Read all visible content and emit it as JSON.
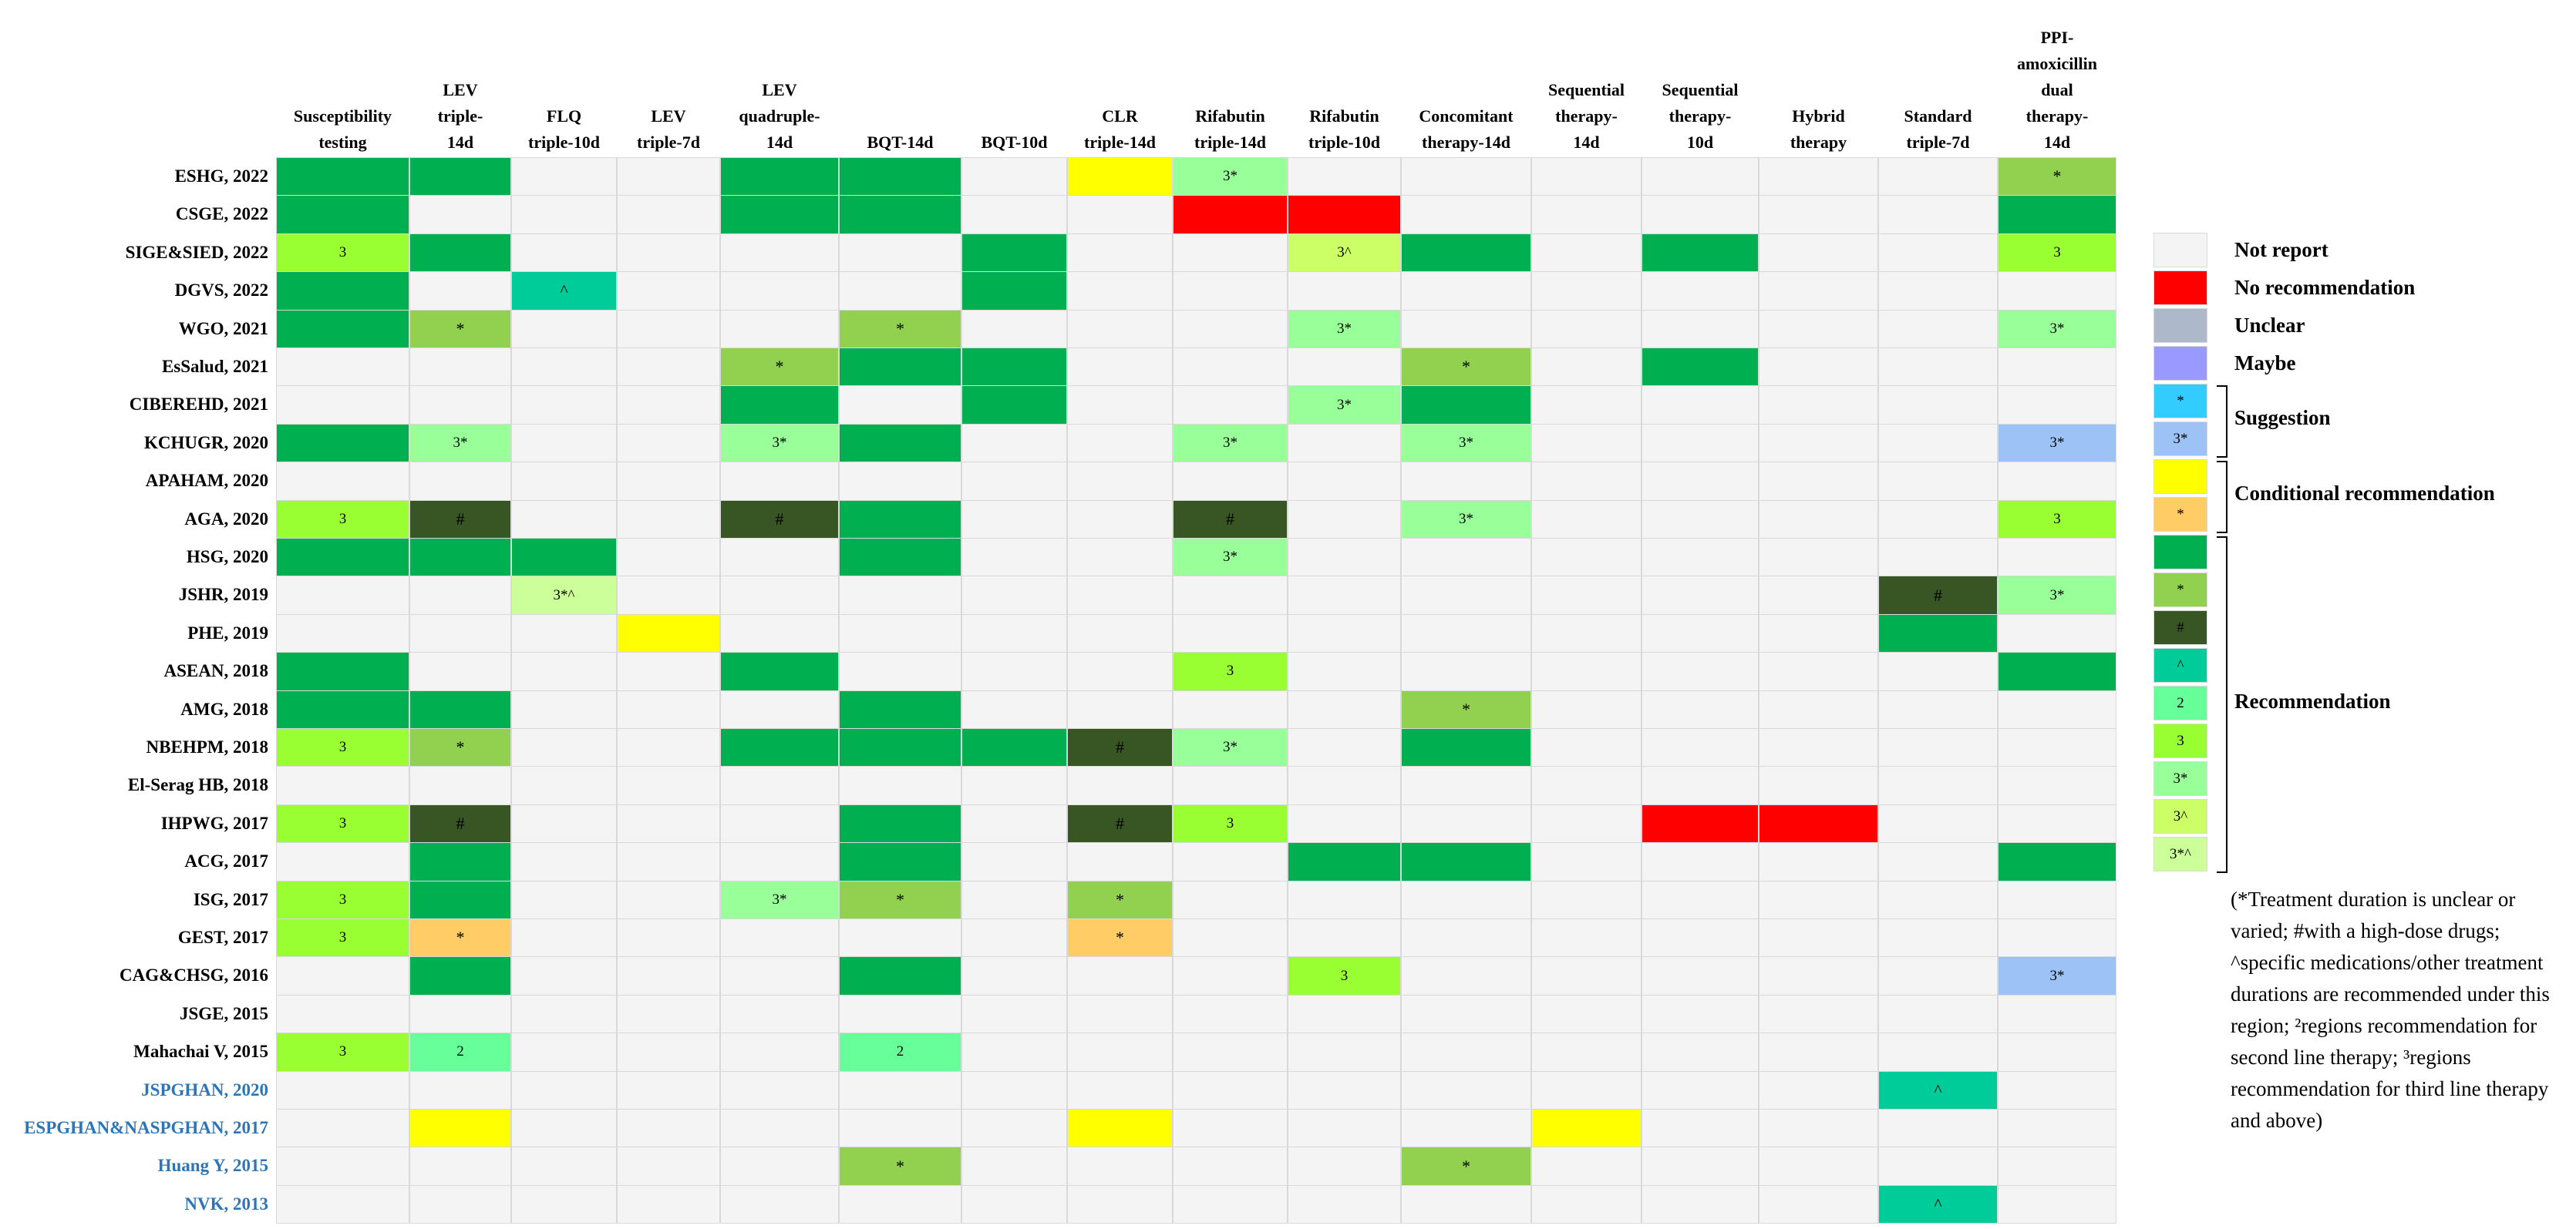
{
  "chart_data": {
    "type": "heatmap",
    "columns": [
      "Susceptibility\ntesting",
      "LEV\ntriple-\n14d",
      "FLQ\ntriple-10d",
      "LEV\ntriple-7d",
      "LEV\nquadruple-\n14d",
      "BQT-14d",
      "BQT-10d",
      "CLR\ntriple-14d",
      "Rifabutin\ntriple-14d",
      "Rifabutin\ntriple-10d",
      "Concomitant\ntherapy-14d",
      "Sequential\ntherapy-\n14d",
      "Sequential\ntherapy-\n10d",
      "Hybrid\ntherapy",
      "Standard\ntriple-7d",
      "PPI-\namoxicillin\ndual\ntherapy-\n14d"
    ],
    "rows": [
      {
        "label": "ESHG, 2022",
        "pediatric": false,
        "cells": [
          "G",
          "G",
          "",
          "",
          "G",
          "G",
          "",
          "Y",
          "3*",
          "",
          "",
          "",
          "",
          "",
          "",
          "*"
        ]
      },
      {
        "label": "CSGE, 2022",
        "pediatric": false,
        "cells": [
          "G",
          "",
          "",
          "",
          "G",
          "G",
          "",
          "",
          "N",
          "N",
          "",
          "",
          "",
          "",
          "",
          "G"
        ]
      },
      {
        "label": "SIGE&SIED, 2022",
        "pediatric": false,
        "cells": [
          "3",
          "G",
          "",
          "",
          "",
          "",
          "G",
          "",
          "",
          "3^",
          "G",
          "",
          "G",
          "",
          "",
          "3"
        ]
      },
      {
        "label": "DGVS, 2022",
        "pediatric": false,
        "cells": [
          "G",
          "",
          "^",
          "",
          "",
          "",
          "G",
          "",
          "",
          "",
          "",
          "",
          "",
          "",
          "",
          ""
        ]
      },
      {
        "label": "WGO, 2021",
        "pediatric": false,
        "cells": [
          "G",
          "*",
          "",
          "",
          "",
          "*",
          "",
          "",
          "",
          "3*",
          "",
          "",
          "",
          "",
          "",
          "3*"
        ]
      },
      {
        "label": "EsSalud, 2021",
        "pediatric": false,
        "cells": [
          "",
          "",
          "",
          "",
          "*",
          "G",
          "G",
          "",
          "",
          "",
          "*",
          "",
          "G",
          "",
          "",
          ""
        ]
      },
      {
        "label": "CIBEREHD, 2021",
        "pediatric": false,
        "cells": [
          "",
          "",
          "",
          "",
          "G",
          "",
          "G",
          "",
          "",
          "3*",
          "G",
          "",
          "",
          "",
          "",
          ""
        ]
      },
      {
        "label": "KCHUGR, 2020",
        "pediatric": false,
        "cells": [
          "G",
          "3*",
          "",
          "",
          "3*",
          "G",
          "",
          "",
          "3*",
          "",
          "3*",
          "",
          "",
          "",
          "",
          "3*b"
        ]
      },
      {
        "label": "APAHAM, 2020",
        "pediatric": false,
        "cells": [
          "",
          "",
          "",
          "",
          "",
          "",
          "",
          "",
          "",
          "",
          "",
          "",
          "",
          "",
          "",
          ""
        ]
      },
      {
        "label": "AGA, 2020",
        "pediatric": false,
        "cells": [
          "3",
          "#",
          "",
          "",
          "#",
          "G",
          "",
          "",
          "#",
          "",
          "3*",
          "",
          "",
          "",
          "",
          "3"
        ]
      },
      {
        "label": "HSG, 2020",
        "pediatric": false,
        "cells": [
          "G",
          "G",
          "G",
          "",
          "",
          "G",
          "",
          "",
          "3*",
          "",
          "",
          "",
          "",
          "",
          "",
          ""
        ]
      },
      {
        "label": "JSHR, 2019",
        "pediatric": false,
        "cells": [
          "",
          "",
          "3*^",
          "",
          "",
          "",
          "",
          "",
          "",
          "",
          "",
          "",
          "",
          "",
          "#",
          "3*"
        ]
      },
      {
        "label": "PHE, 2019",
        "pediatric": false,
        "cells": [
          "",
          "",
          "",
          "Y",
          "",
          "",
          "",
          "",
          "",
          "",
          "",
          "",
          "",
          "",
          "G",
          ""
        ]
      },
      {
        "label": "ASEAN, 2018",
        "pediatric": false,
        "cells": [
          "G",
          "",
          "",
          "",
          "G",
          "",
          "",
          "",
          "3",
          "",
          "",
          "",
          "",
          "",
          "",
          "G"
        ]
      },
      {
        "label": "AMG, 2018",
        "pediatric": false,
        "cells": [
          "G",
          "G",
          "",
          "",
          "",
          "G",
          "",
          "",
          "",
          "",
          "*",
          "",
          "",
          "",
          "",
          ""
        ]
      },
      {
        "label": "NBEHPM, 2018",
        "pediatric": false,
        "cells": [
          "3",
          "*",
          "",
          "",
          "G",
          "G",
          "G",
          "#",
          "3*",
          "",
          "G",
          "",
          "",
          "",
          "",
          ""
        ]
      },
      {
        "label": "El-Serag HB, 2018",
        "pediatric": false,
        "cells": [
          "",
          "",
          "",
          "",
          "",
          "",
          "",
          "",
          "",
          "",
          "",
          "",
          "",
          "",
          "",
          ""
        ]
      },
      {
        "label": "IHPWG, 2017",
        "pediatric": false,
        "cells": [
          "3",
          "#",
          "",
          "",
          "",
          "G",
          "",
          "#",
          "3",
          "",
          "",
          "",
          "N",
          "N",
          "",
          ""
        ]
      },
      {
        "label": "ACG, 2017",
        "pediatric": false,
        "cells": [
          "",
          "G",
          "",
          "",
          "",
          "G",
          "",
          "",
          "",
          "G",
          "G",
          "",
          "",
          "",
          "",
          "G"
        ]
      },
      {
        "label": "ISG, 2017",
        "pediatric": false,
        "cells": [
          "3",
          "G",
          "",
          "",
          "3*",
          "*",
          "",
          "*",
          "",
          "",
          "",
          "",
          "",
          "",
          "",
          ""
        ]
      },
      {
        "label": "GEST, 2017",
        "pediatric": false,
        "cells": [
          "3",
          "O*",
          "",
          "",
          "",
          "",
          "",
          "O*",
          "",
          "",
          "",
          "",
          "",
          "",
          "",
          ""
        ]
      },
      {
        "label": "CAG&CHSG, 2016",
        "pediatric": false,
        "cells": [
          "",
          "G",
          "",
          "",
          "",
          "G",
          "",
          "",
          "",
          "3",
          "",
          "",
          "",
          "",
          "",
          "3*b"
        ]
      },
      {
        "label": "JSGE, 2015",
        "pediatric": false,
        "cells": [
          "",
          "",
          "",
          "",
          "",
          "",
          "",
          "",
          "",
          "",
          "",
          "",
          "",
          "",
          "",
          ""
        ]
      },
      {
        "label": "Mahachai V, 2015",
        "pediatric": false,
        "cells": [
          "3",
          "2",
          "",
          "",
          "",
          "2",
          "",
          "",
          "",
          "",
          "",
          "",
          "",
          "",
          "",
          ""
        ]
      },
      {
        "label": "JSPGHAN, 2020",
        "pediatric": true,
        "cells": [
          "",
          "",
          "",
          "",
          "",
          "",
          "",
          "",
          "",
          "",
          "",
          "",
          "",
          "",
          "^",
          ""
        ]
      },
      {
        "label": "ESPGHAN&NASPGHAN, 2017",
        "pediatric": true,
        "cells": [
          "",
          "Y",
          "",
          "",
          "",
          "",
          "",
          "Y",
          "",
          "",
          "",
          "Y",
          "",
          "",
          "",
          ""
        ]
      },
      {
        "label": "Huang Y, 2015",
        "pediatric": true,
        "cells": [
          "",
          "",
          "",
          "",
          "",
          "*",
          "",
          "",
          "",
          "",
          "*",
          "",
          "",
          "",
          "",
          ""
        ]
      },
      {
        "label": "NVK, 2013",
        "pediatric": true,
        "cells": [
          "",
          "",
          "",
          "",
          "",
          "",
          "",
          "",
          "",
          "",
          "",
          "",
          "",
          "",
          "^",
          ""
        ]
      }
    ],
    "codes": {
      "": {
        "color": "#f4f4f4",
        "text": ""
      },
      "N": {
        "color": "#ff0000",
        "text": ""
      },
      "U": {
        "color": "#adb9ca",
        "text": ""
      },
      "M": {
        "color": "#9999ff",
        "text": ""
      },
      "S*": {
        "color": "#33ccff",
        "text": "*"
      },
      "*a": {
        "color": "#33ccff",
        "text": "*"
      },
      "3*b": {
        "color": "#9dc3f6",
        "text": "3*"
      },
      "Y": {
        "color": "#ffff00",
        "text": ""
      },
      "O*": {
        "color": "#ffcc66",
        "text": "*"
      },
      "G": {
        "color": "#00b050",
        "text": ""
      },
      "*": {
        "color": "#92d050",
        "text": "*"
      },
      "#": {
        "color": "#375623",
        "text": "#"
      },
      "^": {
        "color": "#00cc99",
        "text": "^"
      },
      "2": {
        "color": "#66ff99",
        "text": "2"
      },
      "3": {
        "color": "#99ff33",
        "text": "3"
      },
      "3*": {
        "color": "#99ff99",
        "text": "3*"
      },
      "3^": {
        "color": "#ccff66",
        "text": "3^"
      },
      "3*^": {
        "color": "#ccff99",
        "text": "3*^"
      }
    },
    "legend": [
      {
        "code": "",
        "label": "Not report"
      },
      {
        "code": "N",
        "label": "No recommendation"
      },
      {
        "code": "U",
        "label": "Unclear"
      },
      {
        "code": "M",
        "label": "Maybe"
      },
      {
        "code": "*a",
        "label": ""
      },
      {
        "code": "3*b",
        "label": ""
      },
      {
        "code": "Y",
        "label": ""
      },
      {
        "code": "O*",
        "label": ""
      },
      {
        "code": "G",
        "label": ""
      },
      {
        "code": "*",
        "label": ""
      },
      {
        "code": "#",
        "label": ""
      },
      {
        "code": "^",
        "label": ""
      },
      {
        "code": "2",
        "label": ""
      },
      {
        "code": "3",
        "label": ""
      },
      {
        "code": "3*",
        "label": ""
      },
      {
        "code": "3^",
        "label": ""
      },
      {
        "code": "3*^",
        "label": ""
      }
    ],
    "groups": [
      {
        "label": "Suggestion",
        "from": 4,
        "to": 5
      },
      {
        "label": "Conditional recommendation",
        "from": 6,
        "to": 7
      },
      {
        "label": "Recommendation",
        "from": 8,
        "to": 16
      }
    ],
    "colors": {
      "pediatric_label": "#2e75b6",
      "grid": "#d9d9d9"
    }
  },
  "footnote": "(*Treatment duration is unclear or varied; #with a high-dose drugs; ^specific medications/other treatment durations are recommended under this region; ²regions recommendation for second line therapy; ³regions recommendation for third line therapy and above)"
}
